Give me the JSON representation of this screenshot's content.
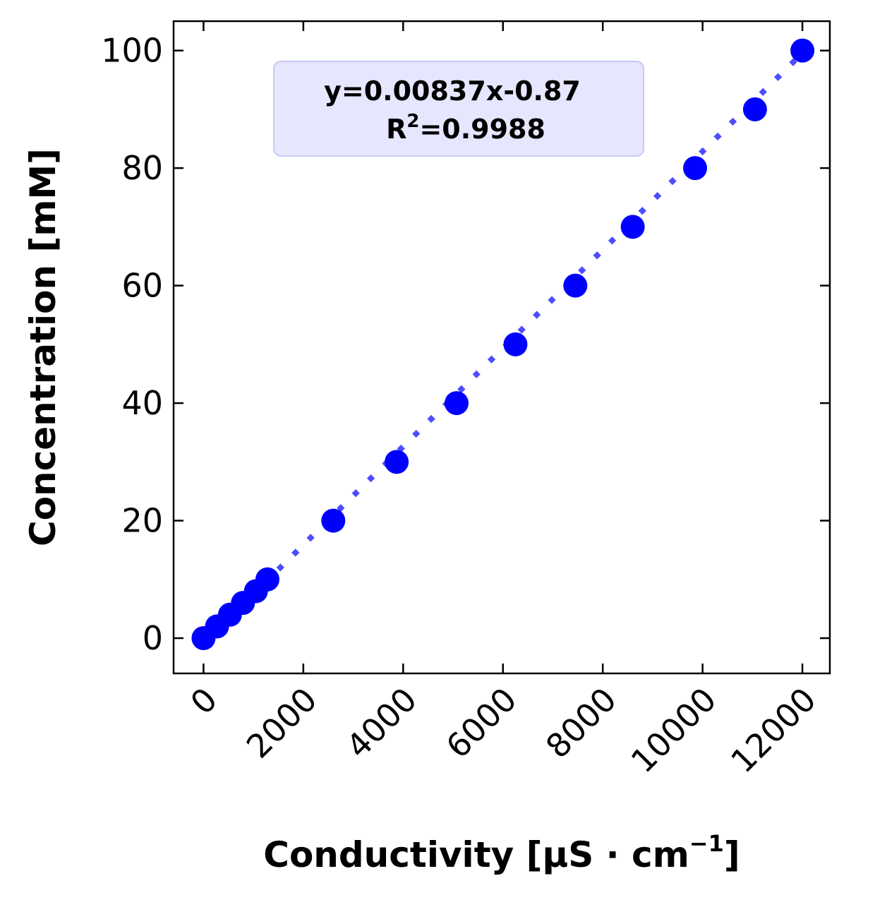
{
  "colors": {
    "points": "#0000ff",
    "fit_line": "#4d4dff",
    "annotation_fill": "#e6e6ff",
    "annotation_border": "#c8c8f5"
  },
  "annotation": {
    "equation": "y=0.00837x-0.87",
    "r2_label": "R",
    "r2_exponent": "2",
    "r2_value": "=0.9988"
  },
  "chart_data": {
    "type": "scatter",
    "xlabel": "Conductivity [µS · cm",
    "xlabel_exponent": "−1",
    "xlabel_end": "]",
    "ylabel": "Concentration [mM]",
    "xlim": [
      -600,
      12550
    ],
    "ylim": [
      -6,
      105
    ],
    "xticks": [
      0,
      2000,
      4000,
      6000,
      8000,
      10000,
      12000
    ],
    "yticks": [
      0,
      20,
      40,
      60,
      80,
      100
    ],
    "grid": false,
    "series": [
      {
        "marker": "circle",
        "points": [
          {
            "x": 0,
            "y": 0
          },
          {
            "x": 270,
            "y": 2
          },
          {
            "x": 530,
            "y": 4
          },
          {
            "x": 790,
            "y": 6
          },
          {
            "x": 1050,
            "y": 8
          },
          {
            "x": 1280,
            "y": 10
          },
          {
            "x": 2600,
            "y": 20
          },
          {
            "x": 3870,
            "y": 30
          },
          {
            "x": 5070,
            "y": 40
          },
          {
            "x": 6250,
            "y": 50
          },
          {
            "x": 7450,
            "y": 60
          },
          {
            "x": 8600,
            "y": 70
          },
          {
            "x": 9850,
            "y": 80
          },
          {
            "x": 11050,
            "y": 90
          },
          {
            "x": 12000,
            "y": 100
          }
        ]
      }
    ],
    "fit": {
      "slope": 0.00837,
      "intercept": -0.87,
      "x_range": [
        1500,
        12000
      ],
      "style": "dotted"
    }
  }
}
